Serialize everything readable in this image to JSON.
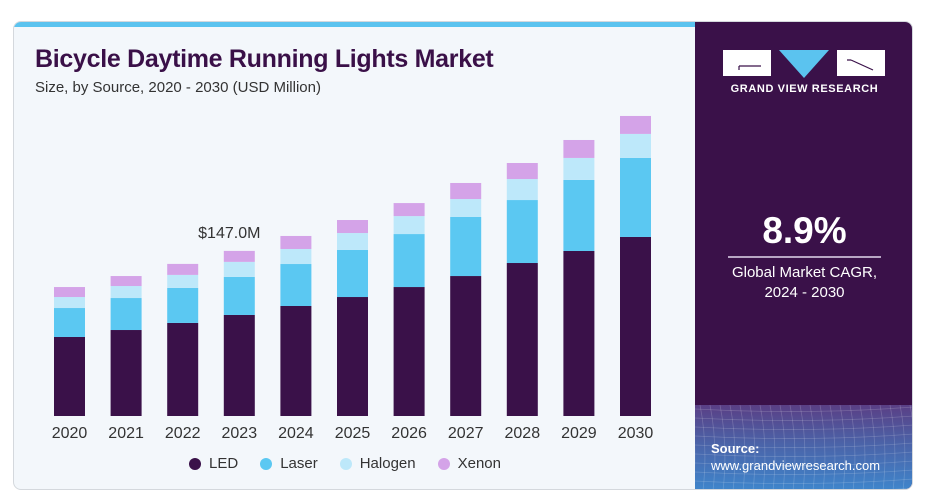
{
  "header": {
    "title": "Bicycle Daytime Running Lights Market",
    "subtitle": "Size, by Source, 2020 - 2030 (USD Million)"
  },
  "brand": {
    "name": "GRAND VIEW RESEARCH",
    "logo_icon": "gvr-logo-icon"
  },
  "stat": {
    "value": "8.9%",
    "label_line1": "Global Market CAGR,",
    "label_line2": "2024 - 2030"
  },
  "source": {
    "label": "Source:",
    "url": "www.grandviewresearch.com"
  },
  "colors": {
    "accent": "#5bc3ef",
    "panel": "#3a1149",
    "led": "#3a1149",
    "laser": "#5bc8f2",
    "halogen": "#bde8fa",
    "xenon": "#d4a3e8"
  },
  "chart_data": {
    "type": "bar",
    "stacked": true,
    "title": "Bicycle Daytime Running Lights Market",
    "subtitle": "Size, by Source, 2020 - 2030 (USD Million)",
    "xlabel": "",
    "ylabel": "",
    "ylim": [
      0,
      300
    ],
    "grid": false,
    "legend_position": "bottom",
    "categories": [
      "2020",
      "2021",
      "2022",
      "2023",
      "2024",
      "2025",
      "2026",
      "2027",
      "2028",
      "2029",
      "2030"
    ],
    "series": [
      {
        "name": "LED",
        "color": "#3a1149",
        "values": [
          70.4,
          76.6,
          82.9,
          90.0,
          98.0,
          106.0,
          114.9,
          124.7,
          136.3,
          147.0,
          159.5
        ]
      },
      {
        "name": "Laser",
        "color": "#5bc8f2",
        "values": [
          25.8,
          28.5,
          31.2,
          33.9,
          37.4,
          41.9,
          47.2,
          52.6,
          56.1,
          63.3,
          70.4
        ]
      },
      {
        "name": "Halogen",
        "color": "#bde8fa",
        "values": [
          9.8,
          10.7,
          11.6,
          13.4,
          13.4,
          15.1,
          16.0,
          16.0,
          18.7,
          19.6,
          21.4
        ]
      },
      {
        "name": "Xenon",
        "color": "#d4a3e8",
        "values": [
          8.9,
          8.9,
          9.8,
          9.8,
          11.6,
          11.6,
          11.6,
          14.3,
          14.3,
          16.0,
          16.0
        ]
      }
    ],
    "annotations": [
      {
        "category": "2023",
        "text": "$147.0M"
      }
    ]
  }
}
